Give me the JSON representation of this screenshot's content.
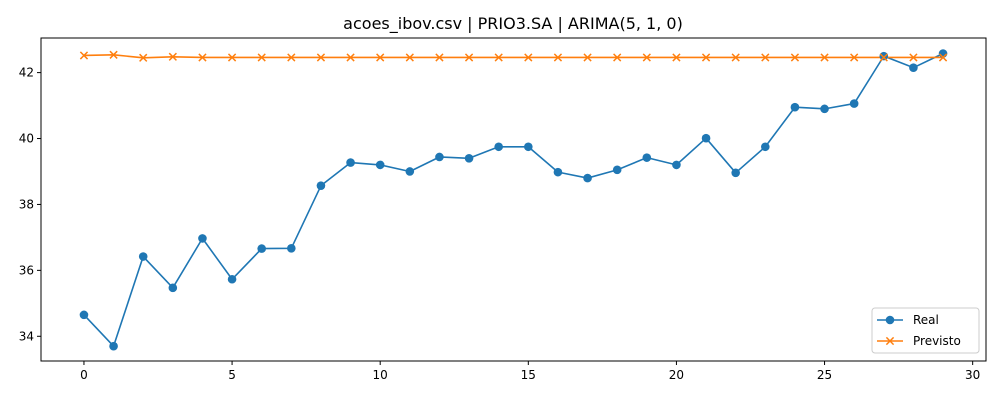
{
  "chart_data": {
    "type": "line",
    "title": "acoes_ibov.csv | PRIO3.SA | ARIMA(5, 1, 0)",
    "xlabel": "",
    "ylabel": "",
    "xlim": [
      -1.45,
      30.45
    ],
    "ylim": [
      33.25,
      43.05
    ],
    "xticks": [
      0,
      5,
      10,
      15,
      20,
      25,
      30
    ],
    "yticks": [
      34,
      36,
      38,
      40,
      42
    ],
    "grid": false,
    "legend_position": "lower-right",
    "x": [
      0,
      1,
      2,
      3,
      4,
      5,
      6,
      7,
      8,
      9,
      10,
      11,
      12,
      13,
      14,
      15,
      16,
      17,
      18,
      19,
      20,
      21,
      22,
      23,
      24,
      25,
      26,
      27,
      28,
      29
    ],
    "series": [
      {
        "name": "Real",
        "color": "#1f77b4",
        "marker": "circle",
        "values": [
          34.65,
          33.7,
          36.42,
          35.47,
          36.97,
          35.73,
          36.66,
          36.67,
          38.57,
          39.27,
          39.2,
          39.0,
          39.44,
          39.4,
          39.75,
          39.75,
          38.98,
          38.8,
          39.05,
          39.42,
          39.2,
          40.01,
          38.96,
          39.75,
          40.95,
          40.9,
          41.06,
          42.5,
          42.15,
          42.58
        ]
      },
      {
        "name": "Previsto",
        "color": "#ff7f0e",
        "marker": "x",
        "values": [
          42.52,
          42.54,
          42.45,
          42.48,
          42.46,
          42.46,
          42.46,
          42.46,
          42.46,
          42.46,
          42.46,
          42.46,
          42.46,
          42.46,
          42.46,
          42.46,
          42.46,
          42.46,
          42.46,
          42.46,
          42.46,
          42.46,
          42.46,
          42.46,
          42.46,
          42.46,
          42.46,
          42.46,
          42.46,
          42.46
        ]
      }
    ]
  }
}
